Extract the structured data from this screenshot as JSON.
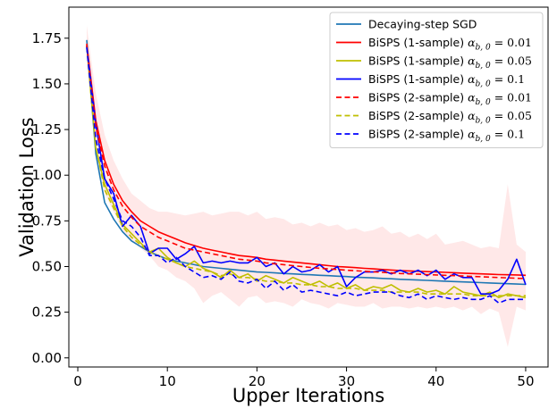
{
  "chart_data": {
    "type": "line",
    "xlabel": "Upper Iterations",
    "ylabel": "Validation Loss",
    "xlim": [
      -1,
      52.5
    ],
    "ylim": [
      -0.05,
      1.92
    ],
    "xticks": [
      0,
      10,
      20,
      30,
      40,
      50
    ],
    "yticks": [
      0.0,
      0.25,
      0.5,
      0.75,
      1.0,
      1.25,
      1.5,
      1.75
    ],
    "xtick_labels": [
      "0",
      "10",
      "20",
      "30",
      "40",
      "50"
    ],
    "ytick_labels": [
      "0.00",
      "0.25",
      "0.50",
      "0.75",
      "1.00",
      "1.25",
      "1.50",
      "1.75"
    ],
    "grid": false,
    "legend_position": "top-right",
    "x": [
      1,
      2,
      3,
      4,
      5,
      6,
      7,
      8,
      9,
      10,
      11,
      12,
      13,
      14,
      15,
      16,
      17,
      18,
      19,
      20,
      21,
      22,
      23,
      24,
      25,
      26,
      27,
      28,
      29,
      30,
      31,
      32,
      33,
      34,
      35,
      36,
      37,
      38,
      39,
      40,
      41,
      42,
      43,
      44,
      45,
      46,
      47,
      48,
      49,
      50
    ],
    "series": [
      {
        "name": "Decaying-step SGD",
        "color": "#1f77b4",
        "dashed": false,
        "values": [
          1.74,
          1.12,
          0.85,
          0.76,
          0.69,
          0.64,
          0.61,
          0.58,
          0.56,
          0.54,
          0.53,
          0.52,
          0.51,
          0.5,
          0.495,
          0.49,
          0.485,
          0.48,
          0.475,
          0.47,
          0.468,
          0.465,
          0.462,
          0.46,
          0.457,
          0.455,
          0.452,
          0.45,
          0.447,
          0.445,
          0.442,
          0.44,
          0.438,
          0.435,
          0.433,
          0.43,
          0.428,
          0.426,
          0.424,
          0.422,
          0.42,
          0.418,
          0.416,
          0.414,
          0.412,
          0.41,
          0.408,
          0.406,
          0.404,
          0.402
        ]
      },
      {
        "name": "BiSPS (1-sample) α_b,0 = 0.01",
        "label_prefix": "BiSPS (1-sample) ",
        "label_value": "0.01",
        "color": "#ff0000",
        "dashed": false,
        "values": [
          1.72,
          1.3,
          1.08,
          0.95,
          0.86,
          0.8,
          0.75,
          0.72,
          0.69,
          0.67,
          0.65,
          0.63,
          0.615,
          0.6,
          0.59,
          0.58,
          0.57,
          0.56,
          0.555,
          0.55,
          0.54,
          0.535,
          0.53,
          0.525,
          0.52,
          0.515,
          0.51,
          0.505,
          0.5,
          0.497,
          0.494,
          0.49,
          0.487,
          0.484,
          0.481,
          0.478,
          0.476,
          0.474,
          0.472,
          0.47,
          0.468,
          0.466,
          0.464,
          0.462,
          0.46,
          0.458,
          0.456,
          0.455,
          0.454,
          0.452
        ]
      },
      {
        "name": "BiSPS (1-sample) α_b,0 = 0.05",
        "label_prefix": "BiSPS (1-sample) ",
        "label_value": "0.05",
        "color": "#bfbf00",
        "dashed": false,
        "values": [
          1.71,
          1.15,
          0.95,
          0.84,
          0.73,
          0.68,
          0.63,
          0.58,
          0.6,
          0.55,
          0.52,
          0.5,
          0.53,
          0.49,
          0.47,
          0.44,
          0.48,
          0.44,
          0.46,
          0.42,
          0.45,
          0.43,
          0.41,
          0.44,
          0.42,
          0.4,
          0.42,
          0.39,
          0.41,
          0.38,
          0.4,
          0.37,
          0.39,
          0.38,
          0.4,
          0.37,
          0.36,
          0.38,
          0.36,
          0.37,
          0.35,
          0.39,
          0.36,
          0.35,
          0.34,
          0.36,
          0.33,
          0.35,
          0.34,
          0.33
        ]
      },
      {
        "name": "BiSPS (1-sample) α_b,0 = 0.1",
        "label_prefix": "BiSPS (1-sample) ",
        "label_value": "0.1",
        "color": "#0000ff",
        "dashed": false,
        "values": [
          1.71,
          1.28,
          0.98,
          0.9,
          0.72,
          0.78,
          0.72,
          0.57,
          0.6,
          0.6,
          0.54,
          0.57,
          0.61,
          0.52,
          0.53,
          0.52,
          0.53,
          0.52,
          0.52,
          0.55,
          0.5,
          0.52,
          0.46,
          0.5,
          0.47,
          0.48,
          0.51,
          0.47,
          0.5,
          0.39,
          0.44,
          0.47,
          0.47,
          0.48,
          0.46,
          0.48,
          0.46,
          0.48,
          0.45,
          0.48,
          0.43,
          0.46,
          0.44,
          0.44,
          0.35,
          0.35,
          0.37,
          0.43,
          0.54,
          0.4
        ]
      },
      {
        "name": "BiSPS (2-sample) α_b,0 = 0.01",
        "label_prefix": "BiSPS (2-sample) ",
        "label_value": "0.01",
        "color": "#ff0000",
        "dashed": true,
        "values": [
          1.71,
          1.27,
          1.05,
          0.92,
          0.83,
          0.77,
          0.72,
          0.69,
          0.66,
          0.64,
          0.62,
          0.6,
          0.59,
          0.58,
          0.57,
          0.56,
          0.55,
          0.54,
          0.535,
          0.53,
          0.52,
          0.515,
          0.51,
          0.505,
          0.5,
          0.495,
          0.49,
          0.487,
          0.484,
          0.48,
          0.477,
          0.474,
          0.471,
          0.468,
          0.465,
          0.462,
          0.46,
          0.458,
          0.456,
          0.454,
          0.452,
          0.45,
          0.448,
          0.446,
          0.444,
          0.442,
          0.44,
          0.438,
          0.436,
          0.434
        ]
      },
      {
        "name": "BiSPS (2-sample) α_b,0 = 0.05",
        "label_prefix": "BiSPS (2-sample) ",
        "label_value": "0.05",
        "color": "#bfbf00",
        "dashed": true,
        "values": [
          1.7,
          1.16,
          0.92,
          0.82,
          0.72,
          0.66,
          0.62,
          0.58,
          0.56,
          0.54,
          0.52,
          0.5,
          0.49,
          0.48,
          0.47,
          0.45,
          0.46,
          0.44,
          0.44,
          0.43,
          0.42,
          0.42,
          0.41,
          0.41,
          0.4,
          0.4,
          0.39,
          0.39,
          0.38,
          0.38,
          0.38,
          0.37,
          0.37,
          0.37,
          0.36,
          0.36,
          0.36,
          0.36,
          0.35,
          0.35,
          0.35,
          0.35,
          0.35,
          0.34,
          0.34,
          0.34,
          0.34,
          0.34,
          0.34,
          0.34
        ]
      },
      {
        "name": "BiSPS (2-sample) α_b,0 = 0.1",
        "label_prefix": "BiSPS (2-sample) ",
        "label_value": "0.1",
        "color": "#0000ff",
        "dashed": true,
        "values": [
          1.7,
          1.2,
          0.98,
          0.87,
          0.75,
          0.72,
          0.66,
          0.56,
          0.56,
          0.52,
          0.55,
          0.5,
          0.47,
          0.44,
          0.45,
          0.43,
          0.47,
          0.42,
          0.41,
          0.43,
          0.38,
          0.42,
          0.37,
          0.4,
          0.36,
          0.37,
          0.36,
          0.35,
          0.34,
          0.36,
          0.34,
          0.35,
          0.36,
          0.36,
          0.36,
          0.34,
          0.33,
          0.35,
          0.32,
          0.34,
          0.33,
          0.32,
          0.33,
          0.32,
          0.32,
          0.34,
          0.3,
          0.32,
          0.32,
          0.32
        ]
      }
    ],
    "band": {
      "color": "#ffcccc",
      "upper": [
        1.82,
        1.45,
        1.22,
        1.08,
        0.98,
        0.9,
        0.86,
        0.82,
        0.8,
        0.8,
        0.79,
        0.78,
        0.79,
        0.8,
        0.78,
        0.79,
        0.8,
        0.8,
        0.78,
        0.8,
        0.76,
        0.77,
        0.76,
        0.73,
        0.74,
        0.72,
        0.74,
        0.72,
        0.73,
        0.7,
        0.71,
        0.69,
        0.7,
        0.72,
        0.68,
        0.69,
        0.66,
        0.68,
        0.65,
        0.68,
        0.62,
        0.63,
        0.64,
        0.62,
        0.6,
        0.61,
        0.6,
        0.95,
        0.62,
        0.58
      ],
      "lower": [
        1.62,
        1.12,
        0.9,
        0.8,
        0.7,
        0.64,
        0.6,
        0.56,
        0.5,
        0.48,
        0.44,
        0.42,
        0.38,
        0.3,
        0.34,
        0.36,
        0.32,
        0.28,
        0.33,
        0.34,
        0.3,
        0.31,
        0.3,
        0.28,
        0.32,
        0.3,
        0.29,
        0.27,
        0.3,
        0.29,
        0.28,
        0.28,
        0.3,
        0.27,
        0.28,
        0.28,
        0.27,
        0.28,
        0.27,
        0.28,
        0.27,
        0.28,
        0.26,
        0.28,
        0.24,
        0.27,
        0.25,
        0.06,
        0.28,
        0.26
      ]
    }
  }
}
